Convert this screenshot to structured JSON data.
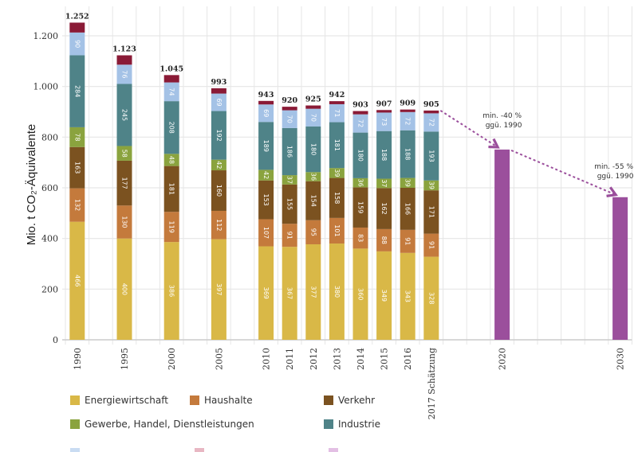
{
  "chart_data": {
    "type": "bar",
    "stacked": true,
    "title": "",
    "xlabel": "",
    "ylabel": "Mio. t CO₂-Äquivalente",
    "ylim": [
      0,
      1250
    ],
    "yticks": [
      0,
      200,
      400,
      600,
      800,
      1000,
      1200
    ],
    "ytick_labels": [
      "0",
      "200",
      "400",
      "600",
      "800",
      "1.000",
      "1.200"
    ],
    "grid": true,
    "categories": [
      "1990",
      "1995",
      "2000",
      "2005",
      "2010",
      "2011",
      "2012",
      "2013",
      "2014",
      "2015",
      "2016",
      "2017 Schätzung"
    ],
    "series": [
      {
        "name": "Energiewirtschaft",
        "color": "#d9b847",
        "values": [
          466,
          400,
          386,
          397,
          369,
          367,
          377,
          380,
          360,
          349,
          343,
          328
        ]
      },
      {
        "name": "Haushalte",
        "color": "#c47a3c",
        "values": [
          132,
          130,
          119,
          112,
          107,
          91,
          95,
          101,
          83,
          88,
          91,
          91
        ]
      },
      {
        "name": "Verkehr",
        "color": "#7b5220",
        "values": [
          163,
          177,
          181,
          160,
          153,
          155,
          154,
          158,
          159,
          162,
          166,
          171
        ]
      },
      {
        "name": "Gewerbe, Handel, Dienstleistungen",
        "color": "#8aa33e",
        "values": [
          78,
          58,
          48,
          42,
          42,
          37,
          36,
          39,
          36,
          37,
          39,
          39
        ]
      },
      {
        "name": "Industrie",
        "color": "#4f8388",
        "values": [
          284,
          245,
          208,
          192,
          189,
          186,
          180,
          181,
          180,
          188,
          188,
          193
        ]
      },
      {
        "name": "",
        "color": "#a4c2e6",
        "values": [
          90,
          76,
          74,
          69,
          69,
          70,
          70,
          71,
          72,
          73,
          72,
          72
        ]
      },
      {
        "name": "",
        "color": "#8a1a36",
        "values": [
          39,
          37,
          29,
          21,
          14,
          14,
          13,
          12,
          13,
          10,
          10,
          11
        ]
      }
    ],
    "totals": [
      "1.252",
      "1.123",
      "1.045",
      "993",
      "943",
      "920",
      "925",
      "942",
      "903",
      "907",
      "909",
      "905"
    ],
    "targets": [
      {
        "category": "2020",
        "value": 751,
        "color": "#9b4f9c",
        "annotation": [
          "min. -40 %",
          "ggü. 1990"
        ]
      },
      {
        "category": "2030",
        "value": 563,
        "color": "#9b4f9c",
        "annotation": [
          "min. -55 %",
          "ggü. 1990"
        ]
      }
    ],
    "legend": {
      "placement": "bottom",
      "items": [
        {
          "label": "Energiewirtschaft",
          "color": "#d9b847"
        },
        {
          "label": "Haushalte",
          "color": "#c47a3c"
        },
        {
          "label": "Verkehr",
          "color": "#7b5220"
        },
        {
          "label": "Gewerbe, Handel, Dienstleistungen",
          "color": "#8aa33e"
        },
        {
          "label": "Industrie",
          "color": "#4f8388"
        }
      ],
      "partial_swatches": [
        "#c9dcf2",
        "#e8b7c3",
        "#e3bfe4"
      ]
    }
  }
}
